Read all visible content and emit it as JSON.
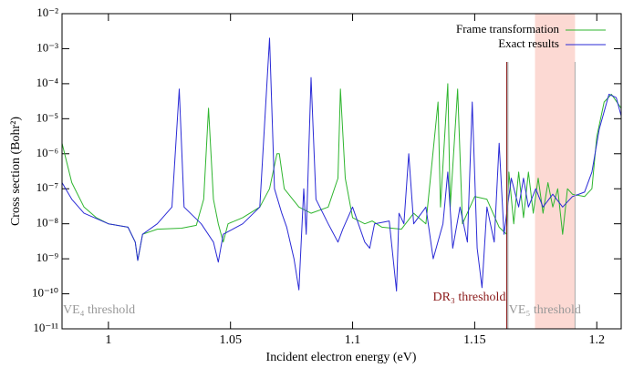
{
  "chart_data": {
    "type": "line",
    "x_label": "Incident electron energy (eV)",
    "y_label": "Cross section (Bohr²)",
    "log_y": true,
    "xlim": [
      0.981,
      1.21
    ],
    "xticks": [
      1,
      1.05,
      1.1,
      1.15,
      1.2
    ],
    "ylim": [
      1e-11,
      0.01
    ],
    "yticks": [
      {
        "value": 1e-11,
        "label": "10⁻¹¹"
      },
      {
        "value": 1e-10,
        "label": "10⁻¹⁰"
      },
      {
        "value": 1e-09,
        "label": "10⁻⁹"
      },
      {
        "value": 1e-08,
        "label": "10⁻⁸"
      },
      {
        "value": 1e-07,
        "label": "10⁻⁷"
      },
      {
        "value": 1e-06,
        "label": "10⁻⁶"
      },
      {
        "value": 1e-05,
        "label": "10⁻⁵"
      },
      {
        "value": 0.0001,
        "label": "10⁻⁴"
      },
      {
        "value": 0.001,
        "label": "10⁻³"
      },
      {
        "value": 0.01,
        "label": "10⁻²"
      }
    ],
    "legend": "top-right",
    "shaded_region": {
      "x": [
        1.1747,
        1.1911
      ],
      "color": "#fcd9d3"
    },
    "annotations": [
      {
        "text": "VE₄ threshold",
        "x": 0.981,
        "color": "#999999"
      },
      {
        "text": "DR₃ threshold",
        "x": 1.1631,
        "color": "#8b1a1a"
      },
      {
        "text": "VE₅ threshold",
        "x": 1.1636,
        "color": "#999999"
      }
    ],
    "series": [
      {
        "name": "Frame transformation",
        "color": "#2fb52f",
        "x": [
          0.981,
          0.985,
          0.99,
          0.995,
          1.0,
          1.008,
          1.011,
          1.012,
          1.014,
          1.02,
          1.03,
          1.036,
          1.039,
          1.041,
          1.043,
          1.045,
          1.047,
          1.049,
          1.055,
          1.062,
          1.066,
          1.069,
          1.07,
          1.072,
          1.078,
          1.083,
          1.09,
          1.094,
          1.095,
          1.097,
          1.1,
          1.105,
          1.108,
          1.112,
          1.12,
          1.125,
          1.13,
          1.135,
          1.136,
          1.139,
          1.14,
          1.143,
          1.145,
          1.15,
          1.155,
          1.16,
          1.163,
          1.164,
          1.166,
          1.168,
          1.17,
          1.172,
          1.174,
          1.176,
          1.178,
          1.18,
          1.182,
          1.184,
          1.186,
          1.188,
          1.19,
          1.195,
          1.198,
          1.2,
          1.203,
          1.206,
          1.21
        ],
        "values": [
          2e-06,
          1.5e-07,
          3e-08,
          1.5e-08,
          1e-08,
          8e-09,
          3e-09,
          9e-10,
          5e-09,
          7e-09,
          7.5e-09,
          9e-09,
          5e-08,
          2e-05,
          5e-08,
          1e-08,
          3e-09,
          1e-08,
          1.5e-08,
          3e-08,
          1e-07,
          1e-06,
          1e-06,
          1e-07,
          3e-08,
          2e-08,
          3e-08,
          2e-07,
          7e-05,
          2e-07,
          1.5e-08,
          1e-08,
          1.2e-08,
          8e-09,
          7e-09,
          2e-08,
          1e-08,
          3e-05,
          3e-08,
          0.0001,
          3e-08,
          7e-05,
          1e-08,
          6e-08,
          5e-08,
          8e-09,
          5e-09,
          3e-07,
          1e-08,
          3e-07,
          1.5e-08,
          3e-07,
          2e-08,
          2e-07,
          2e-08,
          1.5e-07,
          3e-08,
          1e-07,
          5e-09,
          1e-07,
          7e-08,
          6e-08,
          1e-07,
          3e-06,
          3e-05,
          5e-05,
          2e-05
        ]
      },
      {
        "name": "Exact results",
        "color": "#2a2ad6",
        "x": [
          0.981,
          0.985,
          0.99,
          1.0,
          1.008,
          1.011,
          1.012,
          1.014,
          1.02,
          1.026,
          1.029,
          1.031,
          1.038,
          1.043,
          1.045,
          1.047,
          1.055,
          1.062,
          1.066,
          1.068,
          1.071,
          1.073,
          1.076,
          1.078,
          1.08,
          1.081,
          1.083,
          1.085,
          1.09,
          1.094,
          1.096,
          1.1,
          1.105,
          1.107,
          1.109,
          1.115,
          1.118,
          1.119,
          1.121,
          1.123,
          1.125,
          1.13,
          1.133,
          1.137,
          1.139,
          1.141,
          1.144,
          1.147,
          1.149,
          1.151,
          1.153,
          1.155,
          1.158,
          1.16,
          1.162,
          1.165,
          1.168,
          1.17,
          1.172,
          1.175,
          1.178,
          1.182,
          1.186,
          1.19,
          1.195,
          1.198,
          1.201,
          1.205,
          1.208,
          1.21
        ],
        "values": [
          1.5e-07,
          5e-08,
          2e-08,
          1e-08,
          8e-09,
          3e-09,
          9e-10,
          5e-09,
          1e-08,
          3e-08,
          7e-05,
          3e-08,
          1e-08,
          3e-09,
          8e-10,
          5e-09,
          1e-08,
          3e-08,
          0.002,
          1e-07,
          2e-08,
          8e-09,
          1e-09,
          1.3e-10,
          1e-07,
          5e-09,
          0.00015,
          5e-08,
          1e-08,
          3e-09,
          7e-09,
          3e-08,
          3e-09,
          2e-09,
          1e-08,
          1.2e-08,
          1.2e-10,
          2e-08,
          1e-08,
          1e-06,
          1e-08,
          3e-08,
          1e-09,
          1e-08,
          3e-07,
          2e-09,
          3e-08,
          3e-09,
          3e-05,
          2e-09,
          1.5e-10,
          3e-08,
          3e-09,
          2e-06,
          5e-09,
          2e-07,
          3e-08,
          2e-07,
          3e-08,
          1e-07,
          3e-08,
          7e-08,
          3e-08,
          6e-08,
          8e-08,
          3e-07,
          5e-06,
          5e-05,
          4e-05,
          1.2e-05
        ]
      }
    ]
  }
}
